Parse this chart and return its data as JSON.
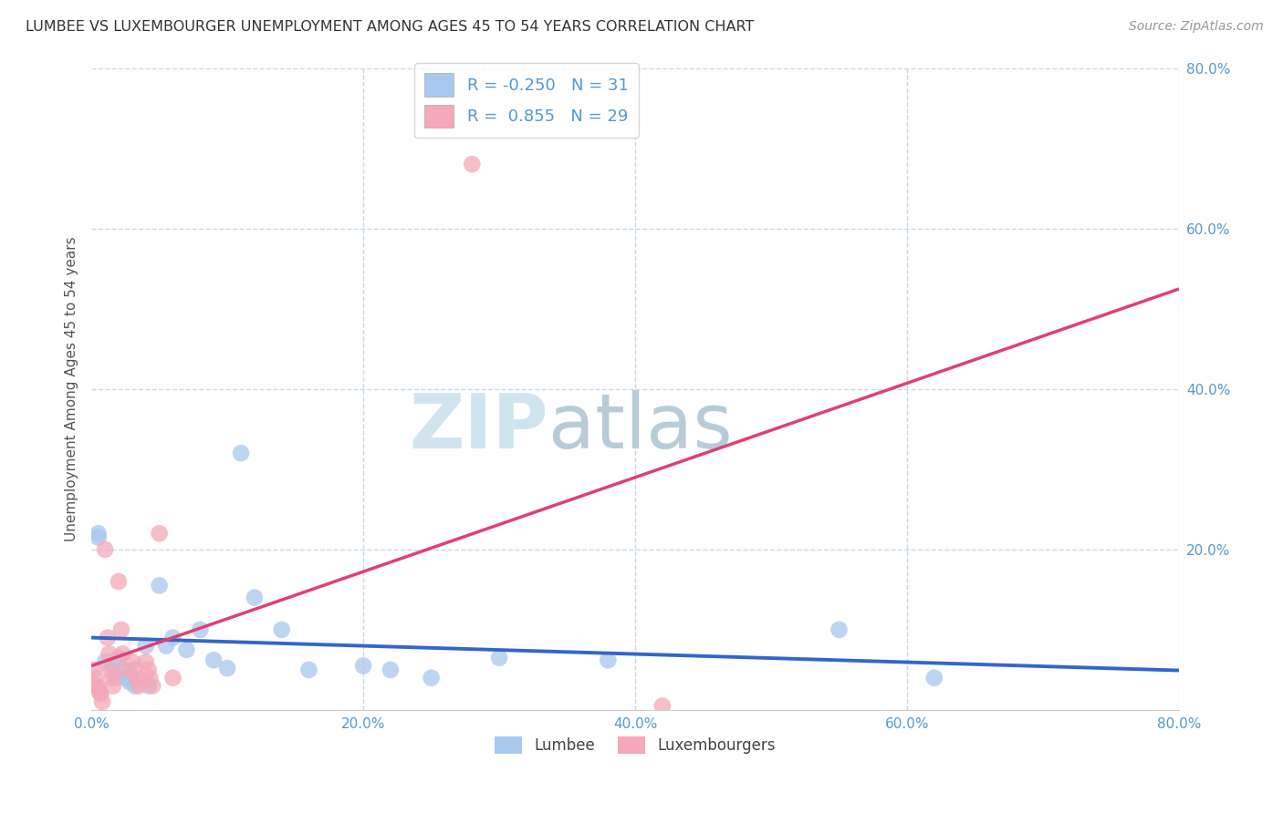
{
  "title": "LUMBEE VS LUXEMBOURGER UNEMPLOYMENT AMONG AGES 45 TO 54 YEARS CORRELATION CHART",
  "source": "Source: ZipAtlas.com",
  "ylabel": "Unemployment Among Ages 45 to 54 years",
  "xlim": [
    0.0,
    0.8
  ],
  "ylim": [
    0.0,
    0.8
  ],
  "xticks": [
    0.0,
    0.2,
    0.4,
    0.6,
    0.8
  ],
  "yticks": [
    0.2,
    0.4,
    0.6,
    0.8
  ],
  "xticklabels": [
    "0.0%",
    "20.0%",
    "40.0%",
    "60.0%",
    "80.0%"
  ],
  "yticklabels": [
    "20.0%",
    "40.0%",
    "60.0%",
    "80.0%"
  ],
  "lumbee_R": -0.25,
  "lumbee_N": 31,
  "luxembourger_R": 0.855,
  "luxembourger_N": 29,
  "lumbee_color": "#a8c8ee",
  "luxembourger_color": "#f4a8b8",
  "lumbee_line_color": "#3366cc",
  "luxembourger_line_color": "#e04070",
  "background_color": "#ffffff",
  "grid_color": "#c8d8e8",
  "tick_label_color": "#5599cc",
  "watermark_zip_color": "#d8e8f4",
  "watermark_atlas_color": "#c8dce8",
  "title_color": "#333333",
  "source_color": "#999999",
  "ylabel_color": "#555555",
  "lumbee_points_x": [
    0.005,
    0.005,
    0.01,
    0.015,
    0.018,
    0.02,
    0.022,
    0.025,
    0.028,
    0.03,
    0.032,
    0.04,
    0.042,
    0.05,
    0.055,
    0.06,
    0.07,
    0.08,
    0.09,
    0.1,
    0.11,
    0.12,
    0.14,
    0.16,
    0.2,
    0.22,
    0.25,
    0.3,
    0.38,
    0.55,
    0.62
  ],
  "lumbee_points_y": [
    0.22,
    0.215,
    0.06,
    0.055,
    0.04,
    0.065,
    0.05,
    0.04,
    0.035,
    0.04,
    0.03,
    0.08,
    0.03,
    0.155,
    0.08,
    0.09,
    0.075,
    0.1,
    0.062,
    0.052,
    0.32,
    0.14,
    0.1,
    0.05,
    0.055,
    0.05,
    0.04,
    0.065,
    0.062,
    0.1,
    0.04
  ],
  "luxembourger_points_x": [
    0.002,
    0.003,
    0.004,
    0.005,
    0.006,
    0.007,
    0.008,
    0.01,
    0.012,
    0.013,
    0.014,
    0.015,
    0.016,
    0.02,
    0.022,
    0.023,
    0.025,
    0.03,
    0.032,
    0.033,
    0.035,
    0.04,
    0.042,
    0.043,
    0.045,
    0.05,
    0.06,
    0.28,
    0.42
  ],
  "luxembourger_points_y": [
    0.05,
    0.04,
    0.03,
    0.028,
    0.022,
    0.02,
    0.01,
    0.2,
    0.09,
    0.07,
    0.05,
    0.04,
    0.03,
    0.16,
    0.1,
    0.07,
    0.05,
    0.06,
    0.05,
    0.04,
    0.03,
    0.06,
    0.05,
    0.04,
    0.03,
    0.22,
    0.04,
    0.68,
    0.005
  ]
}
